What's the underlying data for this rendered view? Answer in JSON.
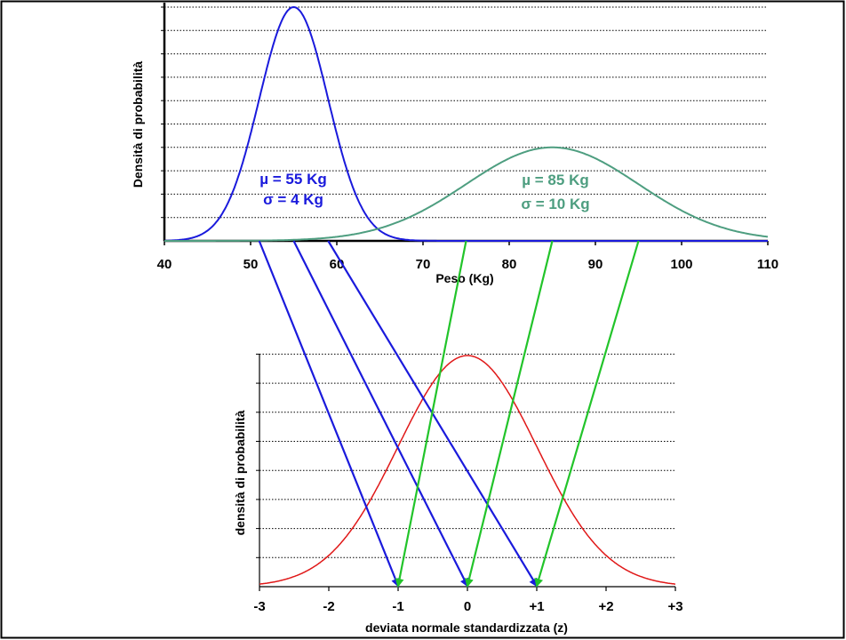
{
  "colors": {
    "weight_curve_1": "#1a1adc",
    "weight_curve_2": "#4e9e80",
    "standard_curve": "#e01818",
    "arrows_1": "#1a1adc",
    "arrows_2": "#22c42a"
  },
  "chart_data": [
    {
      "type": "line",
      "xlabel": "Peso (Kg)",
      "ylabel": "Densità di probabilità",
      "xlim": [
        40,
        110
      ],
      "x_ticks": [
        "40",
        "50",
        "60",
        "70",
        "80",
        "90",
        "100",
        "110"
      ],
      "grid": "horizontal dotted",
      "series": [
        {
          "mu": 55,
          "sigma": 4,
          "label_mu": "µ = 55 Kg",
          "label_sigma": "σ = 4 Kg"
        },
        {
          "mu": 85,
          "sigma": 10,
          "label_mu": "µ = 85 Kg",
          "label_sigma": "σ = 10 Kg"
        }
      ]
    },
    {
      "type": "line",
      "xlabel": "deviata normale standardizzata (z)",
      "ylabel": "densità di probabilità",
      "xlim": [
        -3,
        3
      ],
      "x_ticks": [
        "-3",
        "-2",
        "-1",
        "0",
        "+1",
        "+2",
        "+3"
      ],
      "grid": "horizontal dotted",
      "series": [
        {
          "mu": 0,
          "sigma": 1
        }
      ]
    }
  ],
  "mappings": [
    {
      "from_peso": 51,
      "to_z": -1,
      "group": 1
    },
    {
      "from_peso": 55,
      "to_z": 0,
      "group": 1
    },
    {
      "from_peso": 59,
      "to_z": 1,
      "group": 1
    },
    {
      "from_peso": 75,
      "to_z": -1,
      "group": 2
    },
    {
      "from_peso": 85,
      "to_z": 0,
      "group": 2
    },
    {
      "from_peso": 95,
      "to_z": 1,
      "group": 2
    }
  ]
}
